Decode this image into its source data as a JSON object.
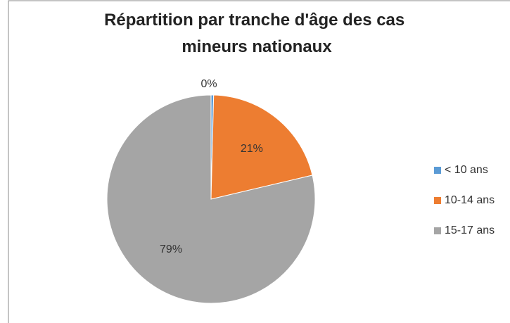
{
  "chart_data": {
    "type": "pie",
    "title": "Répartition par tranche d'âge des cas mineurs nationaux",
    "categories": [
      "< 10 ans",
      "10-14 ans",
      "15-17 ans"
    ],
    "values": [
      0.4,
      21,
      79
    ],
    "value_labels": [
      "0%",
      "21%",
      "79%"
    ],
    "colors": [
      "#5b9bd5",
      "#ed7d31",
      "#a5a5a5"
    ],
    "legend": "right"
  }
}
